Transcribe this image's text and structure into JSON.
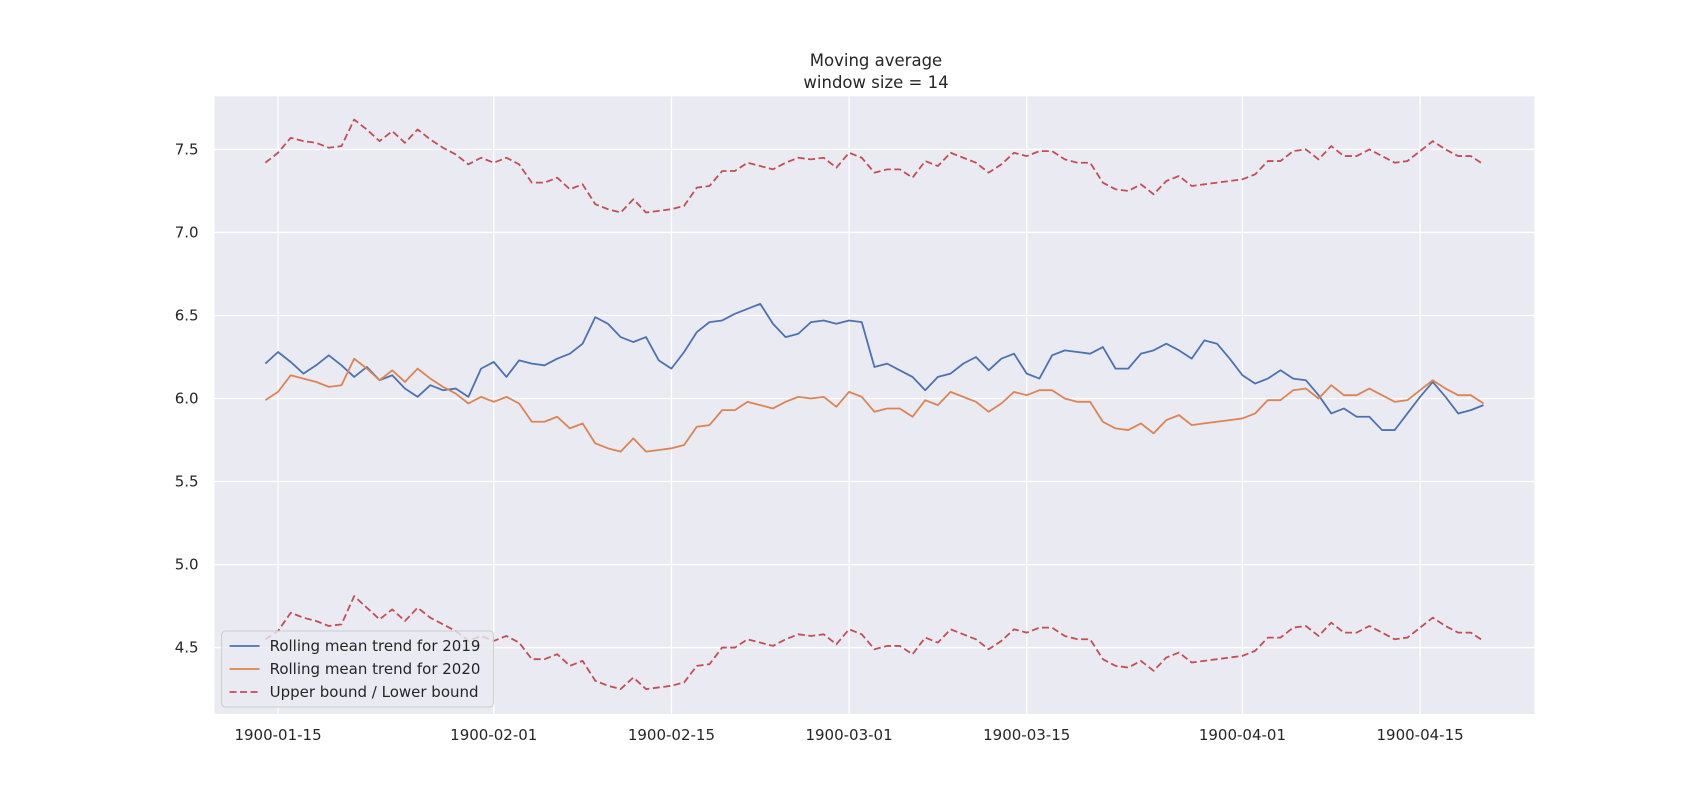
{
  "chart_data": {
    "type": "line",
    "title": "Moving average",
    "subtitle": "window size = 14",
    "xlabel": "",
    "ylabel": "",
    "x_start": "1900-01-14",
    "x_end": "1900-04-20",
    "xlim": [
      "1900-01-10",
      "1900-04-24"
    ],
    "ylim": [
      4.1,
      7.82
    ],
    "x_ticks": [
      "1900-01-15",
      "1900-02-01",
      "1900-02-15",
      "1900-03-01",
      "1900-03-15",
      "1900-04-01",
      "1900-04-15"
    ],
    "y_ticks": [
      4.5,
      5.0,
      5.5,
      6.0,
      6.5,
      7.0,
      7.5
    ],
    "y_tick_labels": [
      "4.5",
      "5.0",
      "5.5",
      "6.0",
      "6.5",
      "7.0",
      "7.5"
    ],
    "grid": true,
    "background_color": "#eaeaf2",
    "legend_position": "bottom-left",
    "series": [
      {
        "name": "Rolling mean trend for 2019",
        "color": "#4c72b0",
        "style": "solid",
        "values": [
          6.21,
          6.28,
          6.22,
          6.15,
          6.2,
          6.26,
          6.2,
          6.13,
          6.19,
          6.11,
          6.14,
          6.06,
          6.01,
          6.08,
          6.05,
          6.06,
          6.01,
          6.18,
          6.22,
          6.13,
          6.23,
          6.21,
          6.2,
          6.24,
          6.27,
          6.33,
          6.49,
          6.45,
          6.37,
          6.34,
          6.37,
          6.23,
          6.18,
          6.28,
          6.4,
          6.46,
          6.47,
          6.51,
          6.54,
          6.57,
          6.45,
          6.37,
          6.39,
          6.46,
          6.47,
          6.45,
          6.47,
          6.46,
          6.19,
          6.21,
          6.17,
          6.13,
          6.05,
          6.13,
          6.15,
          6.21,
          6.25,
          6.17,
          6.24,
          6.27,
          6.15,
          6.12,
          6.26,
          6.29,
          6.28,
          6.27,
          6.31,
          6.18,
          6.18,
          6.27,
          6.29,
          6.33,
          6.29,
          6.24,
          6.35,
          6.33,
          6.24,
          6.14,
          6.09,
          6.12,
          6.17,
          6.12,
          6.11,
          6.02,
          5.91,
          5.94,
          5.89,
          5.89,
          5.81,
          5.81,
          5.91,
          6.01,
          6.1,
          6.01,
          5.91,
          5.93,
          5.96
        ]
      },
      {
        "name": "Rolling mean trend for 2020",
        "color": "#dd8452",
        "style": "solid",
        "values": [
          5.99,
          6.04,
          6.14,
          6.12,
          6.1,
          6.07,
          6.08,
          6.24,
          6.18,
          6.11,
          6.17,
          6.1,
          6.18,
          6.12,
          6.07,
          6.03,
          5.97,
          6.01,
          5.98,
          6.01,
          5.97,
          5.86,
          5.86,
          5.89,
          5.82,
          5.85,
          5.73,
          5.7,
          5.68,
          5.76,
          5.68,
          5.69,
          5.7,
          5.72,
          5.83,
          5.84,
          5.93,
          5.93,
          5.98,
          5.96,
          5.94,
          5.98,
          6.01,
          6.0,
          6.01,
          5.95,
          6.04,
          6.01,
          5.92,
          5.94,
          5.94,
          5.89,
          5.99,
          5.96,
          6.04,
          6.01,
          5.98,
          5.92,
          5.97,
          6.04,
          6.02,
          6.05,
          6.05,
          6.0,
          5.98,
          5.98,
          5.86,
          5.82,
          5.81,
          5.85,
          5.79,
          5.87,
          5.9,
          5.84,
          5.85,
          5.86,
          5.87,
          5.88,
          5.91,
          5.99,
          5.99,
          6.05,
          6.06,
          6.0,
          6.08,
          6.02,
          6.02,
          6.06,
          6.02,
          5.98,
          5.99,
          6.05,
          6.11,
          6.06,
          6.02,
          6.02,
          5.97
        ]
      },
      {
        "name": "Upper bound / Lower bound",
        "color": "#c44e52",
        "style": "dashed",
        "values": [
          7.42,
          7.48,
          7.57,
          7.55,
          7.54,
          7.51,
          7.52,
          7.68,
          7.62,
          7.55,
          7.61,
          7.54,
          7.62,
          7.56,
          7.51,
          7.47,
          7.41,
          7.45,
          7.42,
          7.45,
          7.41,
          7.3,
          7.3,
          7.33,
          7.26,
          7.29,
          7.17,
          7.14,
          7.12,
          7.2,
          7.12,
          7.13,
          7.14,
          7.16,
          7.27,
          7.28,
          7.37,
          7.37,
          7.42,
          7.4,
          7.38,
          7.42,
          7.45,
          7.44,
          7.45,
          7.39,
          7.48,
          7.45,
          7.36,
          7.38,
          7.38,
          7.33,
          7.43,
          7.4,
          7.48,
          7.45,
          7.42,
          7.36,
          7.41,
          7.48,
          7.46,
          7.49,
          7.49,
          7.44,
          7.42,
          7.42,
          7.3,
          7.26,
          7.25,
          7.29,
          7.23,
          7.31,
          7.34,
          7.28,
          7.29,
          7.3,
          7.31,
          7.32,
          7.35,
          7.43,
          7.43,
          7.49,
          7.5,
          7.44,
          7.52,
          7.46,
          7.46,
          7.5,
          7.46,
          7.42,
          7.43,
          7.49,
          7.55,
          7.5,
          7.46,
          7.46,
          7.41
        ]
      },
      {
        "name": "Lower bound",
        "color": "#c44e52",
        "style": "dashed",
        "values": [
          4.55,
          4.6,
          4.71,
          4.68,
          4.66,
          4.63,
          4.64,
          4.81,
          4.74,
          4.67,
          4.73,
          4.66,
          4.74,
          4.68,
          4.64,
          4.6,
          4.54,
          4.57,
          4.54,
          4.57,
          4.53,
          4.43,
          4.43,
          4.46,
          4.39,
          4.42,
          4.3,
          4.27,
          4.25,
          4.32,
          4.25,
          4.26,
          4.27,
          4.29,
          4.39,
          4.4,
          4.5,
          4.5,
          4.55,
          4.53,
          4.51,
          4.55,
          4.58,
          4.57,
          4.58,
          4.52,
          4.61,
          4.58,
          4.49,
          4.51,
          4.51,
          4.46,
          4.56,
          4.53,
          4.61,
          4.58,
          4.55,
          4.49,
          4.54,
          4.61,
          4.59,
          4.62,
          4.62,
          4.57,
          4.55,
          4.55,
          4.43,
          4.39,
          4.38,
          4.42,
          4.36,
          4.44,
          4.47,
          4.41,
          4.42,
          4.43,
          4.44,
          4.45,
          4.48,
          4.56,
          4.56,
          4.62,
          4.63,
          4.57,
          4.65,
          4.59,
          4.59,
          4.63,
          4.59,
          4.55,
          4.56,
          4.62,
          4.68,
          4.63,
          4.59,
          4.59,
          4.54
        ]
      }
    ],
    "legend": [
      {
        "label": "Rolling mean trend for 2019",
        "color": "#4c72b0",
        "style": "solid"
      },
      {
        "label": "Rolling mean trend for 2020",
        "color": "#dd8452",
        "style": "solid"
      },
      {
        "label": "Upper bound / Lower bound",
        "color": "#c44e52",
        "style": "dashed"
      }
    ]
  }
}
